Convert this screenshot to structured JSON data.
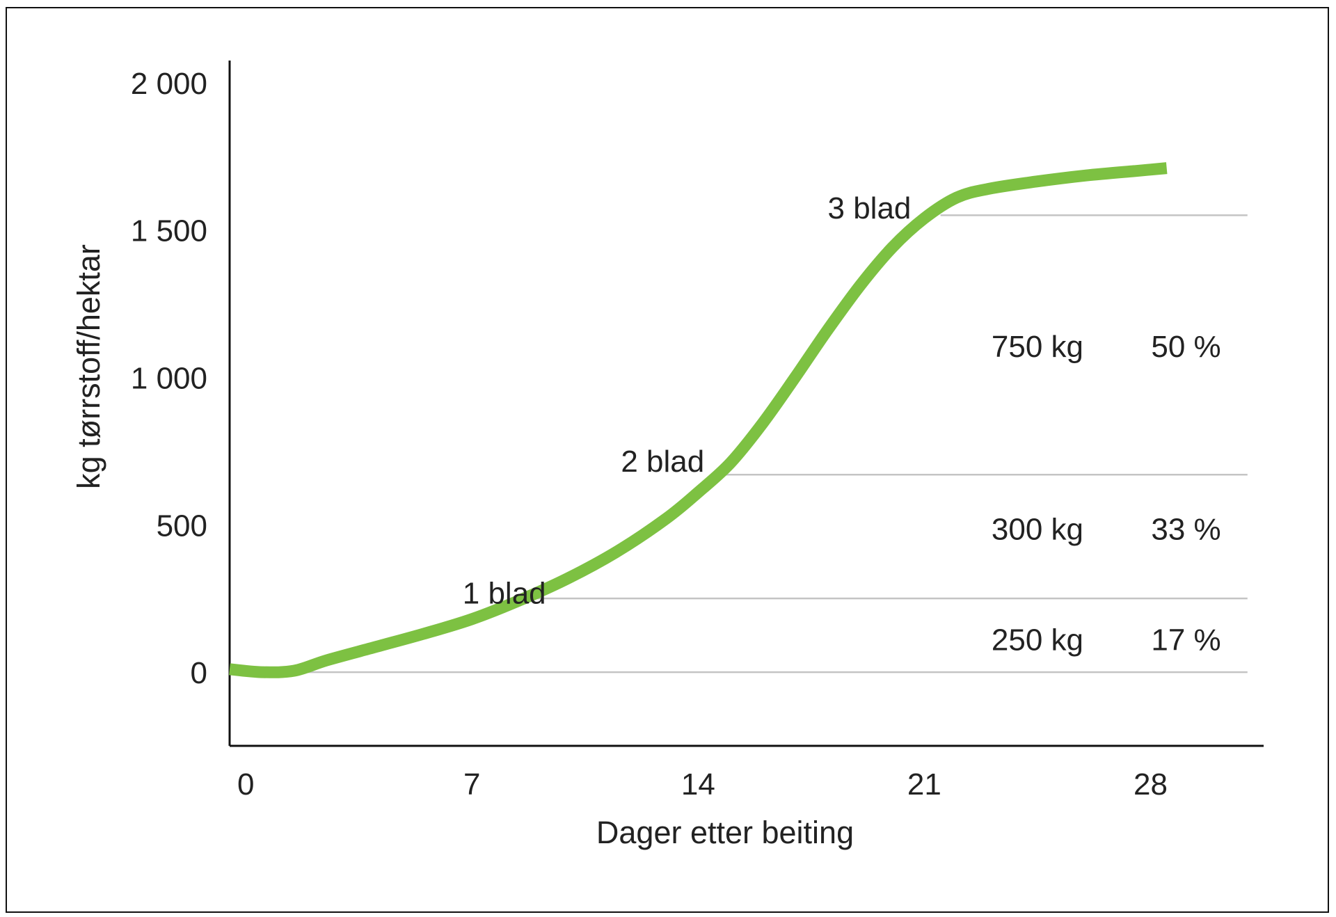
{
  "chart_data": {
    "type": "line",
    "title": "",
    "xlabel": "Dager etter beiting",
    "ylabel": "kg tørrstoff/hektar",
    "xlim": [
      -0.5,
      31.5
    ],
    "ylim": [
      -250,
      2075
    ],
    "x_ticks": [
      {
        "value": 0,
        "label": "0"
      },
      {
        "value": 7,
        "label": "7"
      },
      {
        "value": 14,
        "label": "14"
      },
      {
        "value": 21,
        "label": "21"
      },
      {
        "value": 28,
        "label": "28"
      }
    ],
    "y_ticks": [
      {
        "value": 2000,
        "label": "2 000"
      },
      {
        "value": 1500,
        "label": "1 500"
      },
      {
        "value": 1000,
        "label": "1 000"
      },
      {
        "value": 500,
        "label": "500"
      },
      {
        "value": 0,
        "label": "0"
      }
    ],
    "grid": false,
    "reference_lines": [
      {
        "y": 0,
        "x_start": 1.5,
        "x_end": 31
      },
      {
        "y": 250,
        "x_start": 9,
        "x_end": 31
      },
      {
        "y": 670,
        "x_start": 14.5,
        "x_end": 31
      },
      {
        "y": 1550,
        "x_start": 21.5,
        "x_end": 31
      }
    ],
    "series": [
      {
        "color": "#7dc142",
        "points": [
          [
            -0.5,
            10
          ],
          [
            0.5,
            0
          ],
          [
            1.5,
            5
          ],
          [
            2.5,
            40
          ],
          [
            4,
            85
          ],
          [
            5.5,
            130
          ],
          [
            7,
            180
          ],
          [
            8.5,
            245
          ],
          [
            10,
            320
          ],
          [
            11.5,
            410
          ],
          [
            13,
            520
          ],
          [
            14,
            610
          ],
          [
            15,
            710
          ],
          [
            16,
            845
          ],
          [
            17,
            1000
          ],
          [
            18,
            1160
          ],
          [
            19,
            1310
          ],
          [
            20,
            1440
          ],
          [
            21,
            1540
          ],
          [
            22,
            1610
          ],
          [
            23,
            1640
          ],
          [
            24.5,
            1665
          ],
          [
            26,
            1685
          ],
          [
            27.5,
            1700
          ],
          [
            28.5,
            1710
          ]
        ]
      }
    ],
    "annotations": [
      {
        "text": "1 blad",
        "x": 8,
        "y": 268
      },
      {
        "text": "2 blad",
        "x": 12.9,
        "y": 715
      },
      {
        "text": "3 blad",
        "x": 19.3,
        "y": 1575
      },
      {
        "text": "750 kg",
        "x": 24.5,
        "y": 1105
      },
      {
        "text": "50 %",
        "x": 29.1,
        "y": 1105
      },
      {
        "text": "300 kg",
        "x": 24.5,
        "y": 485
      },
      {
        "text": "33 %",
        "x": 29.1,
        "y": 485
      },
      {
        "text": "250 kg",
        "x": 24.5,
        "y": 110
      },
      {
        "text": "17 %",
        "x": 29.1,
        "y": 110
      }
    ]
  }
}
